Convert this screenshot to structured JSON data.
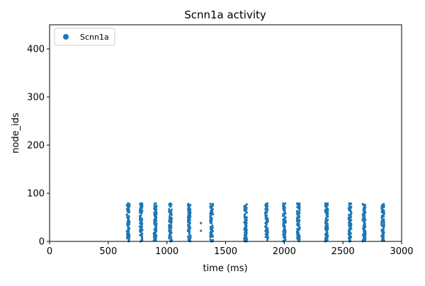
{
  "chart_data": {
    "type": "scatter",
    "title": "Scnn1a activity",
    "xlabel": "time (ms)",
    "ylabel": "node_ids",
    "xlim": [
      0,
      3000
    ],
    "ylim": [
      0,
      450
    ],
    "xticks": [
      0,
      500,
      1000,
      1500,
      2000,
      2500,
      3000
    ],
    "yticks": [
      0,
      100,
      200,
      300,
      400
    ],
    "grid": false,
    "legend": {
      "placement": "top-left",
      "entries": [
        "Scnn1a"
      ]
    },
    "series": [
      {
        "name": "Scnn1a",
        "color": "#1f77b4",
        "node_range": [
          0,
          79
        ],
        "burst_times_ms": [
          670,
          780,
          900,
          1030,
          1190,
          1380,
          1670,
          1850,
          2000,
          2120,
          2360,
          2560,
          2680,
          2840
        ],
        "isolated_spikes": [
          {
            "x": 1290,
            "y": 38
          },
          {
            "x": 1290,
            "y": 22
          }
        ]
      }
    ]
  }
}
